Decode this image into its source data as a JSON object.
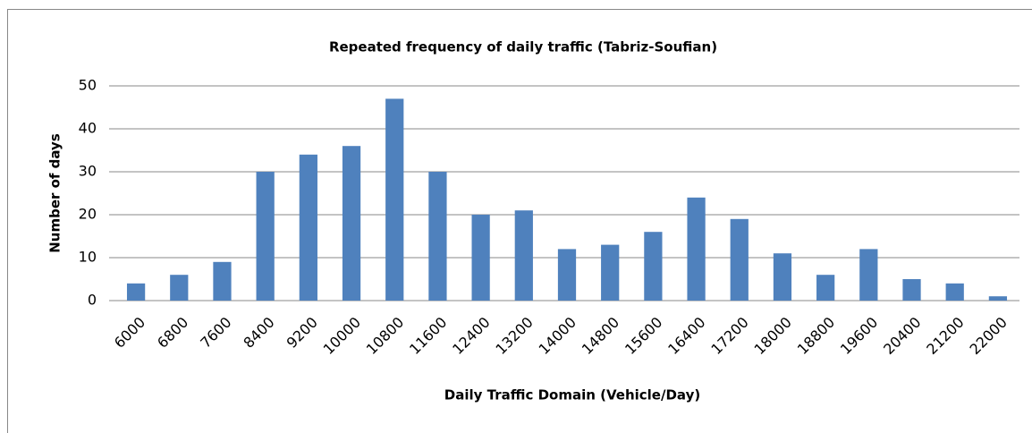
{
  "chart_data": {
    "type": "bar",
    "title": "Repeated frequency of daily traffic (Tabriz-Soufian)",
    "x_label": "Daily Traffic Domain (Vehicle/Day)",
    "y_label": "Number of days",
    "categories": [
      "6000",
      "6800",
      "7600",
      "8400",
      "9200",
      "10000",
      "10800",
      "11600",
      "12400",
      "13200",
      "14000",
      "14800",
      "15600",
      "16400",
      "17200",
      "18000",
      "18800",
      "19600",
      "20400",
      "21200",
      "22000"
    ],
    "values": [
      4,
      6,
      9,
      30,
      34,
      36,
      47,
      30,
      20,
      21,
      12,
      13,
      16,
      24,
      19,
      11,
      6,
      12,
      5,
      4,
      1
    ],
    "color": "#4f81bd",
    "ylim": [
      0,
      50
    ],
    "yticks": [
      0,
      10,
      20,
      30,
      40,
      50
    ],
    "grid": true
  }
}
